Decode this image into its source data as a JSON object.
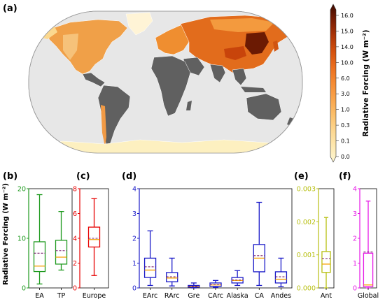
{
  "colors": {
    "ocean": "#e7e7e7",
    "land": "#606060",
    "border": "#ffffff",
    "median": "#f5a000",
    "mean": "#7a1f6f",
    "green": "#1e9a1e",
    "red": "#e60000",
    "blue": "#1a1ac8",
    "olive": "#b7bf10",
    "magenta": "#e619e6"
  },
  "chart_data": [
    {
      "type": "map",
      "panel_label": "(a)",
      "colorbar": {
        "label": "Radiative Forcing (W m⁻²)",
        "ticks": [
          "0.0",
          "0.1",
          "0.3",
          "1.0",
          "3.0",
          "6.0",
          "10.0",
          "14.0",
          "15.0",
          "16.0"
        ],
        "colors": [
          "#fdf6d2",
          "#fde8b0",
          "#fcd690",
          "#fbbf6a",
          "#f9a44b",
          "#f58b33",
          "#ec6f1e",
          "#d4510e",
          "#ad3507",
          "#7a1e04",
          "#3e0a01"
        ]
      }
    },
    {
      "type": "box",
      "panel_label": "(b)",
      "ylabel": "Radiative Forcing (W m⁻²)",
      "ylim": [
        0,
        20
      ],
      "yticks": [
        "0",
        "10",
        "20"
      ],
      "color": "green",
      "categories": [
        "EA",
        "TP"
      ],
      "boxes": [
        {
          "whislo": 0.8,
          "q1": 3.3,
          "med": 4.4,
          "mean": 7.0,
          "q3": 9.3,
          "whishi": 18.8
        },
        {
          "whislo": 3.6,
          "q1": 4.8,
          "med": 6.2,
          "mean": 7.5,
          "q3": 9.6,
          "whishi": 15.4
        }
      ]
    },
    {
      "type": "box",
      "panel_label": "(c)",
      "ylim": [
        0,
        8
      ],
      "yticks": [
        "0",
        "2",
        "4",
        "6",
        "8"
      ],
      "color": "red",
      "categories": [
        "Europe"
      ],
      "boxes": [
        {
          "whislo": 1.0,
          "q1": 3.3,
          "med": 3.9,
          "mean": 4.0,
          "q3": 4.9,
          "whishi": 7.2
        }
      ]
    },
    {
      "type": "box",
      "panel_label": "(d)",
      "ylim": [
        0,
        4
      ],
      "yticks": [
        "0",
        "1",
        "2",
        "3",
        "4"
      ],
      "color": "blue",
      "categories": [
        "EArc",
        "RArc",
        "Gre",
        "CArc",
        "Alaska",
        "CA",
        "Andes"
      ],
      "boxes": [
        {
          "whislo": 0.1,
          "q1": 0.42,
          "med": 0.72,
          "mean": 0.85,
          "q3": 1.2,
          "whishi": 2.3
        },
        {
          "whislo": 0.08,
          "q1": 0.25,
          "med": 0.4,
          "mean": 0.45,
          "q3": 0.62,
          "whishi": 1.2
        },
        {
          "whislo": 0.0,
          "q1": 0.03,
          "med": 0.06,
          "mean": 0.07,
          "q3": 0.1,
          "whishi": 0.2
        },
        {
          "whislo": 0.02,
          "q1": 0.06,
          "med": 0.12,
          "mean": 0.13,
          "q3": 0.2,
          "whishi": 0.3
        },
        {
          "whislo": 0.1,
          "q1": 0.2,
          "med": 0.3,
          "mean": 0.32,
          "q3": 0.42,
          "whishi": 0.7
        },
        {
          "whislo": 0.1,
          "q1": 0.65,
          "med": 1.2,
          "mean": 1.3,
          "q3": 1.75,
          "whishi": 3.45
        },
        {
          "whislo": 0.05,
          "q1": 0.2,
          "med": 0.35,
          "mean": 0.45,
          "q3": 0.65,
          "whishi": 1.2
        }
      ]
    },
    {
      "type": "box",
      "panel_label": "(e)",
      "ylim": [
        0,
        0.003
      ],
      "yticks": [
        "0.000",
        "0.001",
        "0.002",
        "0.003"
      ],
      "color": "olive",
      "categories": [
        "Ant"
      ],
      "boxes": [
        {
          "whislo": 0.0,
          "q1": 0.00047,
          "med": 0.00072,
          "mean": 0.00089,
          "q3": 0.0011,
          "whishi": 0.00213
        }
      ]
    },
    {
      "type": "box",
      "panel_label": "(f)",
      "ylim": [
        0,
        4
      ],
      "yticks": [
        "0",
        "1",
        "2",
        "3",
        "4"
      ],
      "color": "magenta",
      "categories": [
        "Global"
      ],
      "boxes": [
        {
          "whislo": 0.0,
          "q1": 0.05,
          "med": 0.12,
          "mean": 1.45,
          "q3": 1.4,
          "whishi": 3.5
        }
      ]
    }
  ]
}
